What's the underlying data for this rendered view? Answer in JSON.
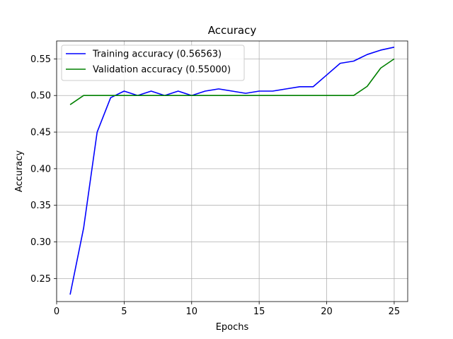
{
  "chart_data": {
    "type": "line",
    "title": "Accuracy",
    "xlabel": "Epochs",
    "ylabel": "Accuracy",
    "xlim": [
      0,
      26
    ],
    "ylim": [
      0.2185,
      0.5745
    ],
    "xticks": [
      0,
      5,
      10,
      15,
      20,
      25
    ],
    "yticks": [
      0.25,
      0.3,
      0.35,
      0.4,
      0.45,
      0.5,
      0.55
    ],
    "grid": true,
    "legend_position": "top-left",
    "series": [
      {
        "name": "Training accuracy (0.56563)",
        "color": "#0000ff",
        "x": [
          1,
          2,
          3,
          4,
          5,
          6,
          7,
          8,
          9,
          10,
          11,
          12,
          13,
          14,
          15,
          16,
          17,
          18,
          19,
          20,
          21,
          22,
          23,
          24,
          25
        ],
        "values": [
          0.228,
          0.319,
          0.45,
          0.497,
          0.506,
          0.5,
          0.506,
          0.5,
          0.506,
          0.5,
          0.506,
          0.509,
          0.506,
          0.503,
          0.506,
          0.506,
          0.509,
          0.512,
          0.512,
          0.528,
          0.544,
          0.547,
          0.556,
          0.562,
          0.566
        ]
      },
      {
        "name": "Validation accuracy (0.55000)",
        "color": "#008000",
        "x": [
          1,
          2,
          3,
          4,
          5,
          6,
          7,
          8,
          9,
          10,
          11,
          12,
          13,
          14,
          15,
          16,
          17,
          18,
          19,
          20,
          21,
          22,
          23,
          24,
          25
        ],
        "values": [
          0.4875,
          0.5,
          0.5,
          0.5,
          0.5,
          0.5,
          0.5,
          0.5,
          0.5,
          0.5,
          0.5,
          0.5,
          0.5,
          0.5,
          0.5,
          0.5,
          0.5,
          0.5,
          0.5,
          0.5,
          0.5,
          0.5,
          0.5125,
          0.5375,
          0.55
        ]
      }
    ]
  }
}
